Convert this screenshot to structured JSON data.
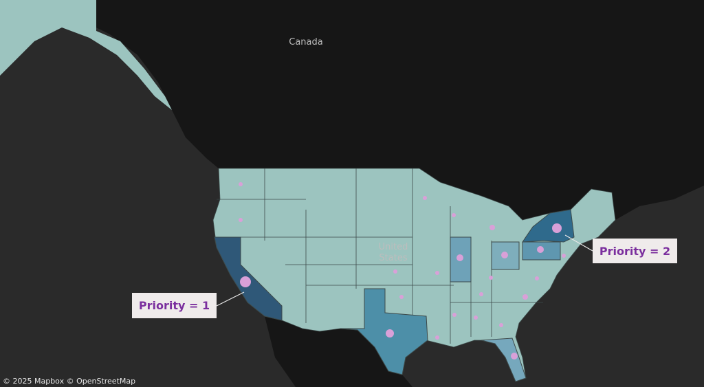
{
  "map": {
    "labels": [
      "Canada",
      "United States"
    ],
    "annotations": [
      "Priority = 1",
      "Priority = 2"
    ],
    "attribution": "© 2025 Mapbox © OpenStreetMap"
  }
}
